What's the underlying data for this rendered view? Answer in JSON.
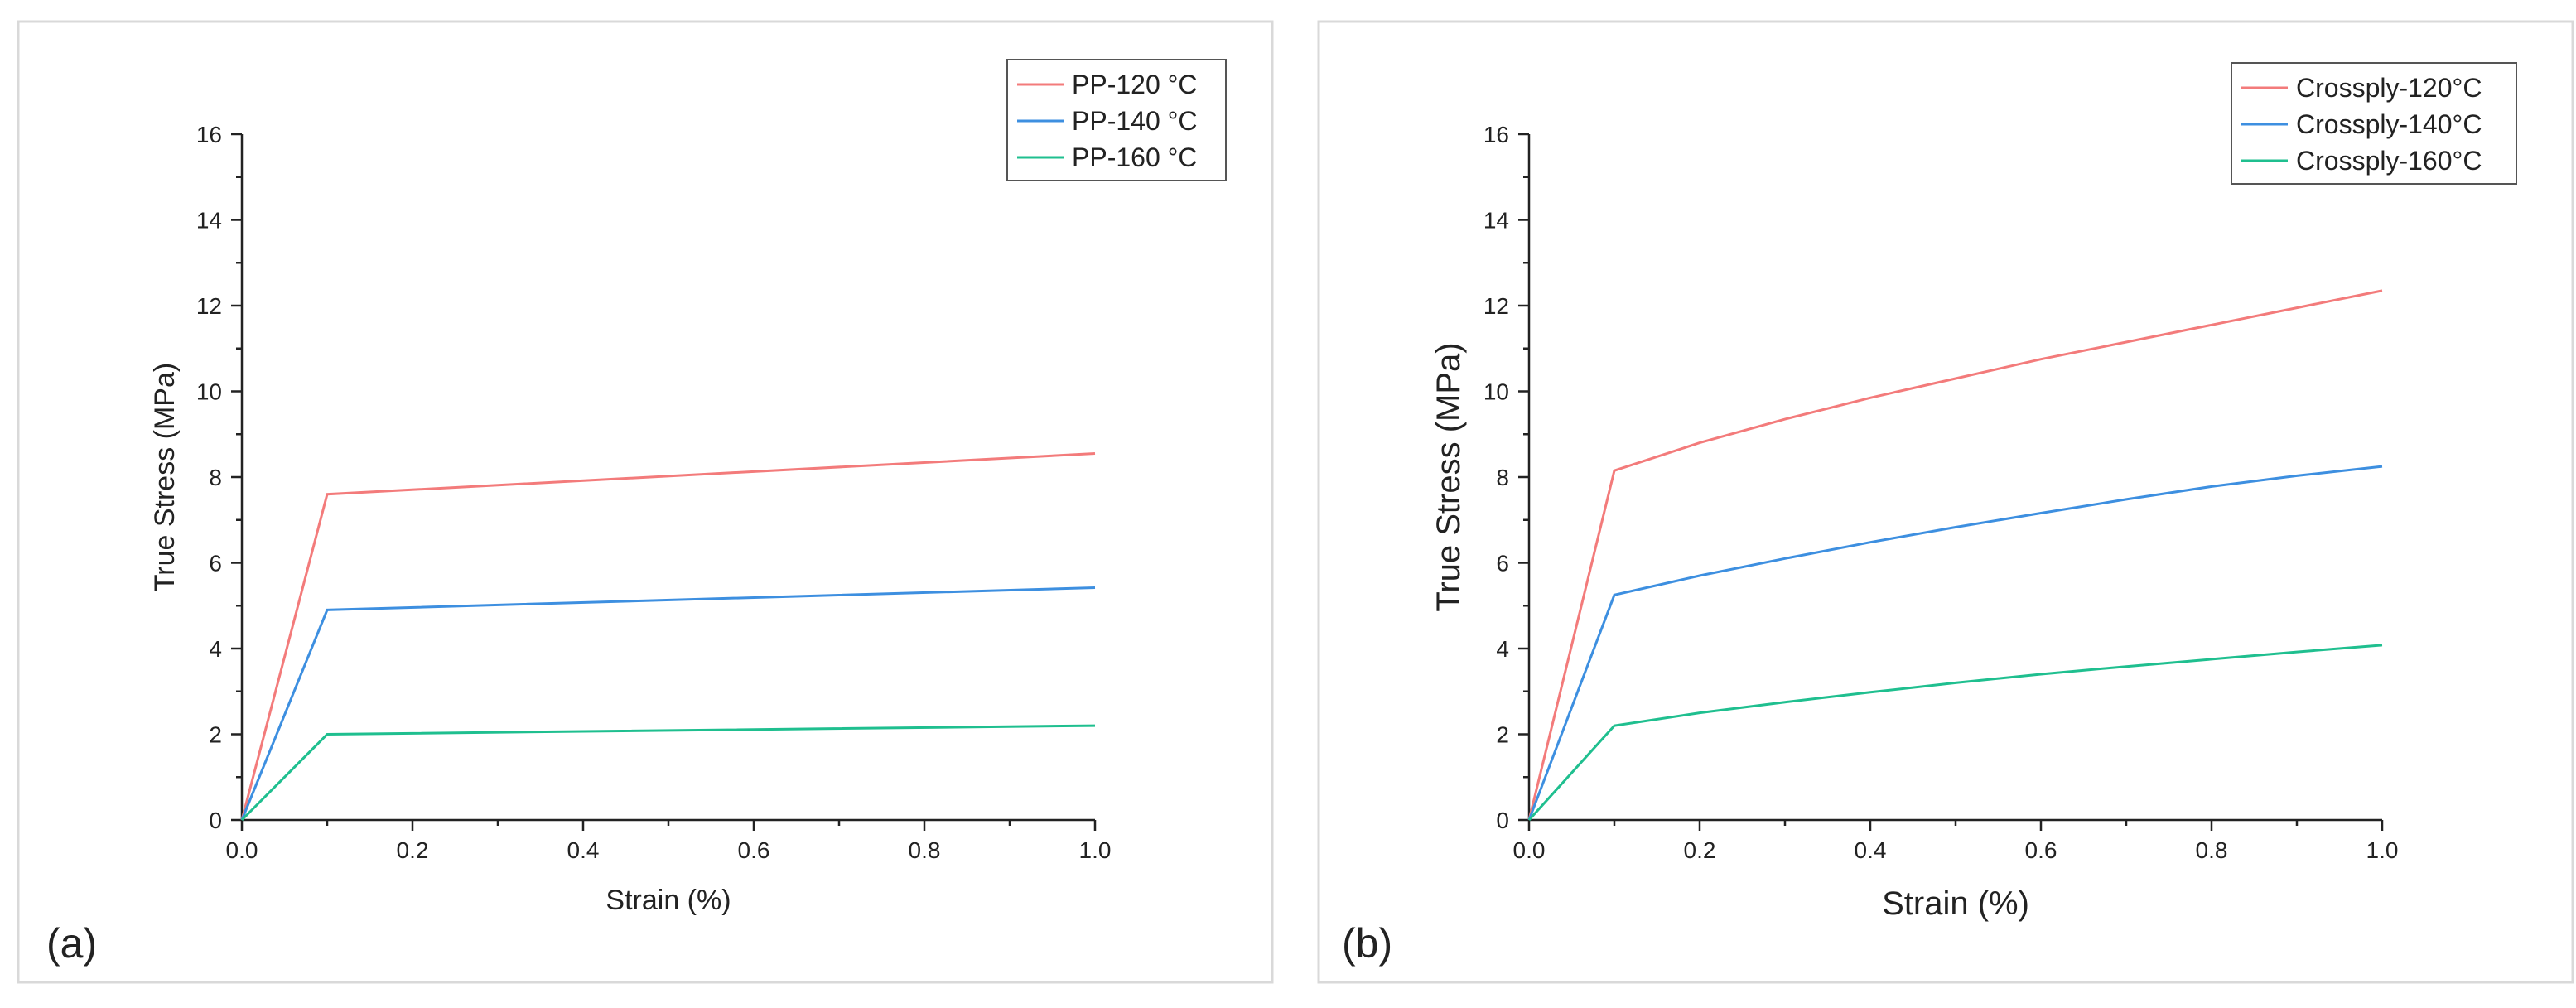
{
  "chart_data": [
    {
      "id": "a",
      "type": "line",
      "panel_label": "(a)",
      "xlabel": "Strain (%)",
      "ylabel": "True Stress (MPa)",
      "xlim": [
        0,
        1.0
      ],
      "ylim": [
        0,
        16
      ],
      "xticks": [
        "0.0",
        "0.2",
        "0.4",
        "0.6",
        "0.8",
        "1.0"
      ],
      "yticks": [
        "0",
        "2",
        "4",
        "6",
        "8",
        "10",
        "12",
        "14",
        "16"
      ],
      "legend_position": "top-right",
      "series": [
        {
          "name": "PP-120 °C",
          "color": "#f37b7b",
          "x": [
            0,
            0.1,
            1.0
          ],
          "y": [
            0,
            7.6,
            8.55
          ]
        },
        {
          "name": "PP-140 °C",
          "color": "#3d8fe0",
          "x": [
            0,
            0.1,
            1.0
          ],
          "y": [
            0,
            4.9,
            5.42
          ]
        },
        {
          "name": "PP-160 °C",
          "color": "#1fbf8f",
          "x": [
            0,
            0.1,
            1.0
          ],
          "y": [
            0,
            2.0,
            2.2
          ]
        }
      ]
    },
    {
      "id": "b",
      "type": "line",
      "panel_label": "(b)",
      "xlabel": "Strain (%)",
      "ylabel": "True Stress (MPa)",
      "xlim": [
        0,
        1.0
      ],
      "ylim": [
        0,
        16
      ],
      "xticks": [
        "0.0",
        "0.2",
        "0.4",
        "0.6",
        "0.8",
        "1.0"
      ],
      "yticks": [
        "0",
        "2",
        "4",
        "6",
        "8",
        "10",
        "12",
        "14",
        "16"
      ],
      "legend_position": "top-right",
      "series": [
        {
          "name": "Crossply-120°C",
          "color": "#f37b7b",
          "x": [
            0,
            0.1,
            0.2,
            0.3,
            0.4,
            0.5,
            0.6,
            0.7,
            0.8,
            0.9,
            1.0
          ],
          "y": [
            0,
            8.15,
            8.8,
            9.35,
            9.85,
            10.3,
            10.75,
            11.15,
            11.55,
            11.95,
            12.35
          ]
        },
        {
          "name": "Crossply-140°C",
          "color": "#3d8fe0",
          "x": [
            0,
            0.1,
            0.2,
            0.3,
            0.4,
            0.5,
            0.6,
            0.7,
            0.8,
            0.9,
            1.0
          ],
          "y": [
            0,
            5.25,
            5.7,
            6.1,
            6.48,
            6.83,
            7.16,
            7.48,
            7.78,
            8.03,
            8.25
          ]
        },
        {
          "name": "Crossply-160°C",
          "color": "#1fbf8f",
          "x": [
            0,
            0.1,
            0.2,
            0.3,
            0.4,
            0.5,
            0.6,
            0.7,
            0.8,
            0.9,
            1.0
          ],
          "y": [
            0,
            2.2,
            2.5,
            2.75,
            2.98,
            3.2,
            3.4,
            3.58,
            3.75,
            3.92,
            4.08
          ]
        }
      ]
    }
  ]
}
